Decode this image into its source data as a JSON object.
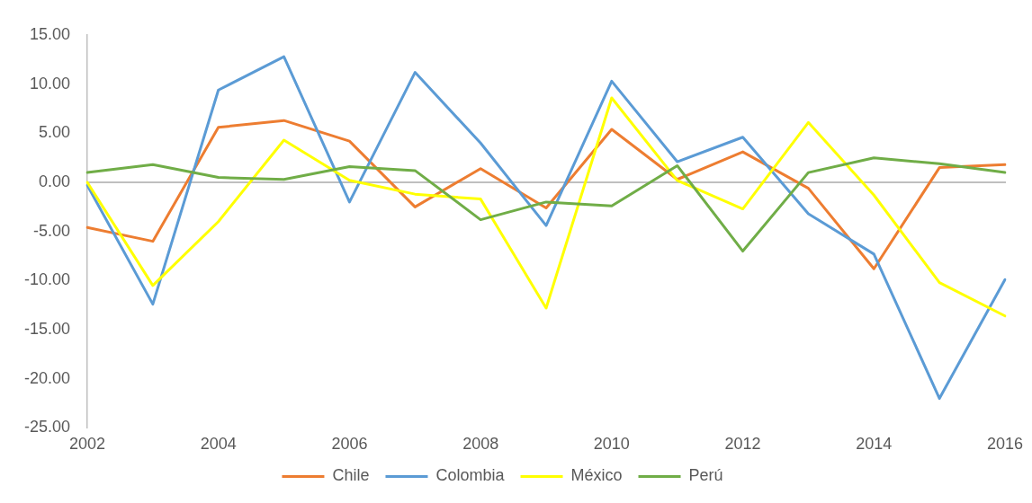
{
  "chart_data": {
    "type": "line",
    "categories": [
      "2002",
      null,
      "2004",
      null,
      "2006",
      null,
      "2008",
      null,
      "2010",
      null,
      "2012",
      null,
      "2014",
      null,
      "2016"
    ],
    "series": [
      {
        "name": "Chile",
        "color": "#ed7d31",
        "values": [
          -4.6,
          -6.0,
          5.6,
          6.3,
          4.2,
          -2.5,
          1.4,
          -2.6,
          5.4,
          0.3,
          3.1,
          -0.6,
          -8.8,
          1.5,
          1.8
        ]
      },
      {
        "name": "Colombia",
        "color": "#5b9bd5",
        "values": [
          -0.3,
          -12.4,
          9.4,
          12.8,
          -2.0,
          11.2,
          4.0,
          -4.4,
          10.3,
          2.1,
          4.6,
          -3.2,
          -7.3,
          -22.0,
          -9.9
        ]
      },
      {
        "name": "México",
        "color": "#ffff00",
        "values": [
          0.0,
          -10.5,
          -4.0,
          4.3,
          0.2,
          -1.2,
          -1.7,
          -12.8,
          8.6,
          0.2,
          -2.7,
          6.1,
          -1.3,
          -10.2,
          -13.6
        ]
      },
      {
        "name": "Perú",
        "color": "#70ad47",
        "values": [
          1.0,
          1.8,
          0.5,
          0.3,
          1.6,
          1.2,
          -3.8,
          -2.0,
          -2.4,
          1.7,
          -7.0,
          1.0,
          2.5,
          1.9,
          1.0
        ]
      }
    ],
    "ylim": [
      -25,
      15
    ],
    "yticks": [
      {
        "value": -25,
        "label": "-25.00"
      },
      {
        "value": -20,
        "label": "-20.00"
      },
      {
        "value": -15,
        "label": "-15.00"
      },
      {
        "value": -10,
        "label": "-10.00"
      },
      {
        "value": -5,
        "label": "-5.00"
      },
      {
        "value": 0,
        "label": "0.00"
      },
      {
        "value": 5,
        "label": "5.00"
      },
      {
        "value": 10,
        "label": "10.00"
      },
      {
        "value": 15,
        "label": "15.00"
      }
    ],
    "legend": "bottom",
    "marker": "none"
  }
}
